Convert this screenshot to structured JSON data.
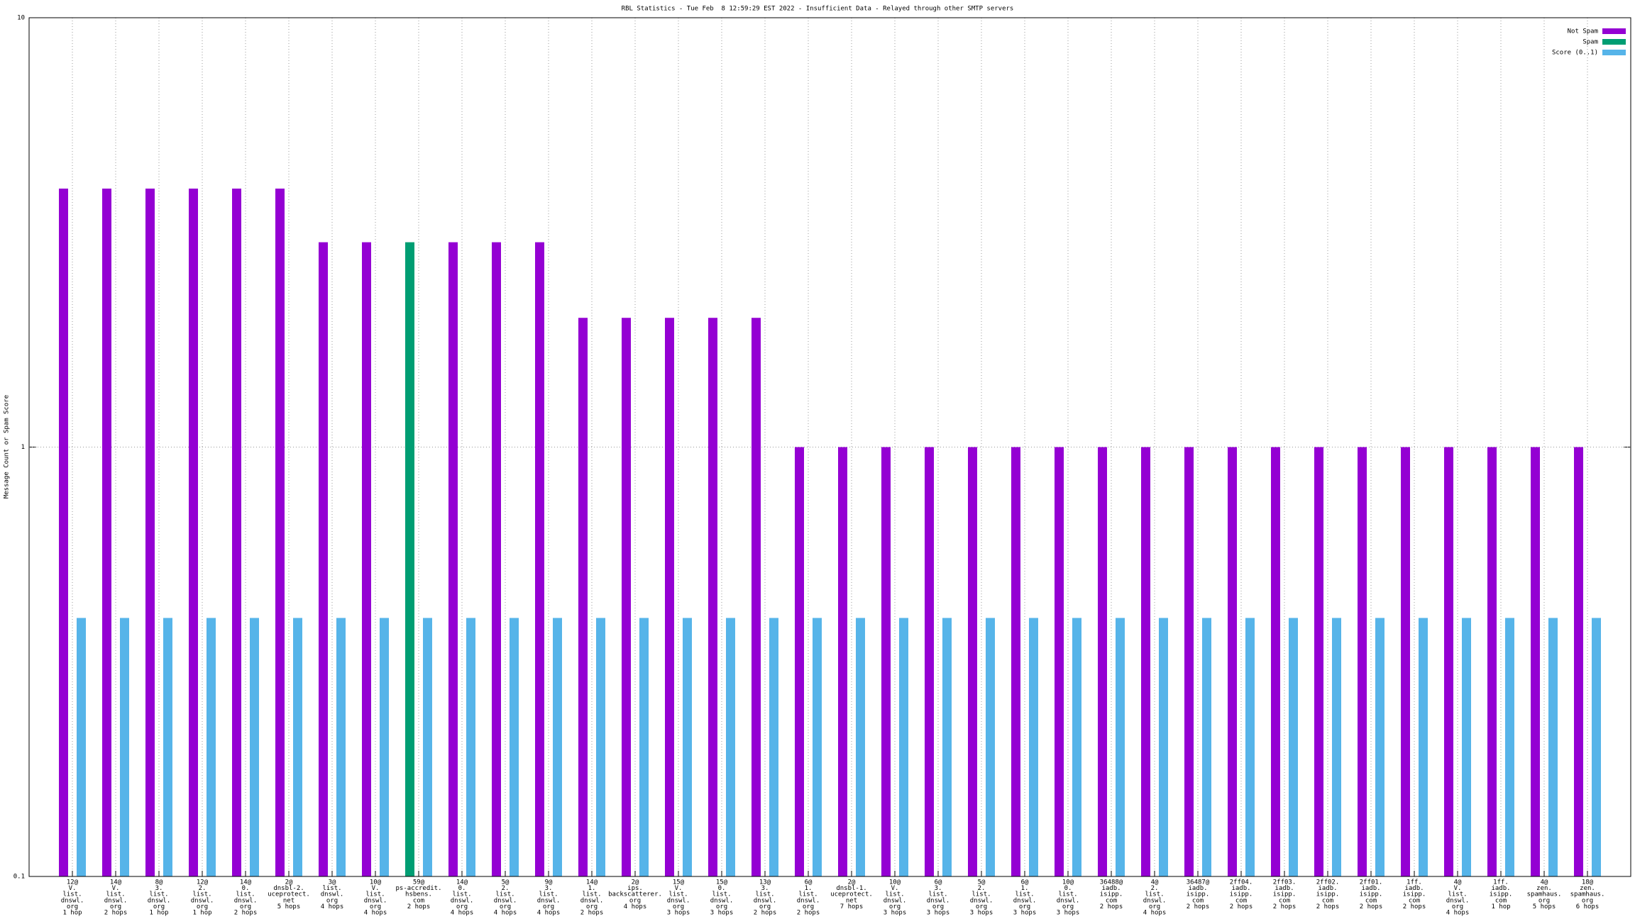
{
  "chart_data": {
    "type": "bar",
    "title": "RBL Statistics - Tue Feb  8 12:59:29 EST 2022 - Insufficient Data - Relayed through other SMTP servers",
    "ylabel": "Message Count or Spam Score",
    "log_scale": true,
    "grid": true,
    "legend_position": "top-right",
    "ylim": [
      0.1,
      10
    ],
    "yticks": [
      0.1,
      1,
      10
    ],
    "categories": [
      [
        "12@",
        "V.",
        "list.",
        "dnswl.",
        "org",
        "1 hop"
      ],
      [
        "14@",
        "V.",
        "list.",
        "dnswl.",
        "org",
        "2 hops"
      ],
      [
        "8@",
        "3.",
        "list.",
        "dnswl.",
        "org",
        "1 hop"
      ],
      [
        "12@",
        "2.",
        "list.",
        "dnswl.",
        "org",
        "1 hop"
      ],
      [
        "14@",
        "0.",
        "list.",
        "dnswl.",
        "org",
        "2 hops"
      ],
      [
        "2@",
        "dnsbl-2.",
        "uceprotect.",
        "net",
        "5 hops"
      ],
      [
        "3@",
        "list.",
        "dnswl.",
        "org",
        "4 hops"
      ],
      [
        "10@",
        "V.",
        "list.",
        "dnswl.",
        "org",
        "4 hops"
      ],
      [
        "59@",
        "ps-accredit.",
        "hsbens.",
        "com",
        "2 hops"
      ],
      [
        "14@",
        "0.",
        "list.",
        "dnswl.",
        "org",
        "4 hops"
      ],
      [
        "5@",
        "2.",
        "list.",
        "dnswl.",
        "org",
        "4 hops"
      ],
      [
        "9@",
        "3.",
        "list.",
        "dnswl.",
        "org",
        "4 hops"
      ],
      [
        "14@",
        "1.",
        "list.",
        "dnswl.",
        "org",
        "2 hops"
      ],
      [
        "2@",
        "ips.",
        "backscatterer.",
        "org",
        "4 hops"
      ],
      [
        "15@",
        "V.",
        "list.",
        "dnswl.",
        "org",
        "3 hops"
      ],
      [
        "15@",
        "0.",
        "list.",
        "dnswl.",
        "org",
        "3 hops"
      ],
      [
        "13@",
        "3.",
        "list.",
        "dnswl.",
        "org",
        "2 hops"
      ],
      [
        "6@",
        "1.",
        "list.",
        "dnswl.",
        "org",
        "2 hops"
      ],
      [
        "2@",
        "dnsbl-1.",
        "uceprotect.",
        "net",
        "7 hops"
      ],
      [
        "10@",
        "V.",
        "list.",
        "dnswl.",
        "org",
        "3 hops"
      ],
      [
        "6@",
        "3.",
        "list.",
        "dnswl.",
        "org",
        "3 hops"
      ],
      [
        "5@",
        "2.",
        "list.",
        "dnswl.",
        "org",
        "3 hops"
      ],
      [
        "6@",
        "1.",
        "list.",
        "dnswl.",
        "org",
        "3 hops"
      ],
      [
        "10@",
        "0.",
        "list.",
        "dnswl.",
        "org",
        "3 hops"
      ],
      [
        "36488@",
        "iadb.",
        "isipp.",
        "com",
        "2 hops"
      ],
      [
        "4@",
        "2.",
        "list.",
        "dnswl.",
        "org",
        "4 hops"
      ],
      [
        "36487@",
        "iadb.",
        "isipp.",
        "com",
        "2 hops"
      ],
      [
        "2ff04.",
        "iadb.",
        "isipp.",
        "com",
        "2 hops"
      ],
      [
        "2ff03.",
        "iadb.",
        "isipp.",
        "com",
        "2 hops"
      ],
      [
        "2ff02.",
        "iadb.",
        "isipp.",
        "com",
        "2 hops"
      ],
      [
        "2ff01.",
        "iadb.",
        "isipp.",
        "com",
        "2 hops"
      ],
      [
        "1ff.",
        "iadb.",
        "isipp.",
        "com",
        "2 hops"
      ],
      [
        "4@",
        "V.",
        "list.",
        "dnswl.",
        "org",
        "4 hops"
      ],
      [
        "1ff.",
        "iadb.",
        "isipp.",
        "com",
        "1 hop"
      ],
      [
        "4@",
        "zen.",
        "spamhaus.",
        "org",
        "5 hops"
      ],
      [
        "18@",
        "zen.",
        "spamhaus.",
        "org",
        "6 hops"
      ]
    ],
    "series": [
      {
        "name": "Not Spam",
        "color": "#9400d3",
        "values": [
          4,
          4,
          4,
          4,
          4,
          4,
          3,
          3,
          null,
          3,
          3,
          3,
          2,
          2,
          2,
          2,
          2,
          1,
          1,
          1,
          1,
          1,
          1,
          1,
          1,
          1,
          1,
          1,
          1,
          1,
          1,
          1,
          1,
          1,
          1,
          1
        ]
      },
      {
        "name": "Spam",
        "color": "#009e73",
        "values": [
          null,
          null,
          null,
          null,
          null,
          null,
          null,
          null,
          3,
          null,
          null,
          null,
          null,
          null,
          null,
          null,
          null,
          null,
          null,
          null,
          null,
          null,
          null,
          null,
          null,
          null,
          null,
          null,
          null,
          null,
          null,
          null,
          null,
          null,
          null,
          null
        ]
      },
      {
        "name": "Score (0..1)",
        "color": "#56b4e9",
        "values": [
          0.4,
          0.4,
          0.4,
          0.4,
          0.4,
          0.4,
          0.4,
          0.4,
          0.4,
          0.4,
          0.4,
          0.4,
          0.4,
          0.4,
          0.4,
          0.4,
          0.4,
          0.4,
          0.4,
          0.4,
          0.4,
          0.4,
          0.4,
          0.4,
          0.4,
          0.4,
          0.4,
          0.4,
          0.4,
          0.4,
          0.4,
          0.4,
          0.4,
          0.4,
          0.4,
          0.4
        ]
      }
    ]
  }
}
